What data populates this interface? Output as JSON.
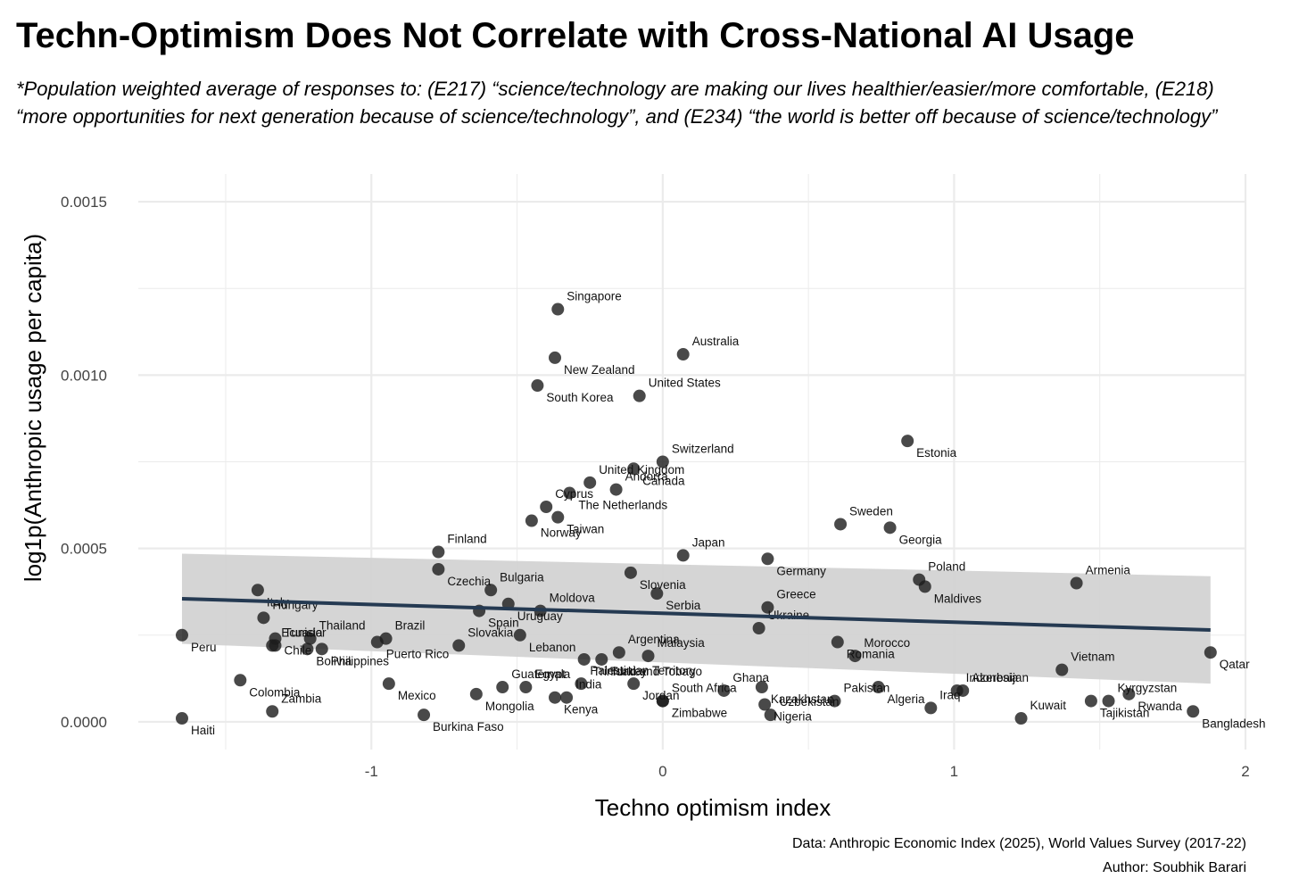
{
  "title": "Techn-Optimism Does Not Correlate with Cross-National AI Usage",
  "subtitle": "*Population weighted average of responses to: (E217) “science/technology are making our lives healthier/easier/more comfortable, (E218) “more opportunities for next generation because of science/technology”, and (E234) “the world is better off because of science/technology”",
  "caption_source": "Data: Anthropic Economic Index (2025), World Values Survey (2017-22)",
  "caption_author": "Author: Soubhik Barari",
  "colors": {
    "point": "#1c1c1c",
    "trend": "#253a52",
    "band": "#d3d3d3",
    "grid": "#ebebeb"
  },
  "chart_data": {
    "type": "scatter",
    "xlabel": "Techno optimism index",
    "ylabel": "log1p(Anthropic usage per capita)",
    "xlim": [
      -1.8,
      2.0
    ],
    "ylim": [
      -8e-05,
      0.00158
    ],
    "x_ticks": [
      -1,
      0,
      1,
      2
    ],
    "x_tick_labels": [
      "-1",
      "0",
      "1",
      "2"
    ],
    "y_ticks": [
      0.0,
      0.0005,
      0.001,
      0.0015
    ],
    "y_tick_labels": [
      "0.0000",
      "0.0005",
      "0.0010",
      "0.0015"
    ],
    "grid": true,
    "trend": {
      "x": [
        -1.65,
        1.88
      ],
      "y": [
        0.000355,
        0.000265
      ]
    },
    "band": {
      "x": [
        -1.65,
        1.88
      ],
      "upper": [
        0.000485,
        0.00042
      ],
      "lower": [
        0.000225,
        0.00011
      ]
    },
    "points": [
      {
        "label": "Singapore",
        "x": -0.36,
        "y": 0.00119
      },
      {
        "label": "New Zealand",
        "x": -0.37,
        "y": 0.00105
      },
      {
        "label": "Australia",
        "x": 0.07,
        "y": 0.00106
      },
      {
        "label": "South Korea",
        "x": -0.43,
        "y": 0.00097
      },
      {
        "label": "United States",
        "x": -0.08,
        "y": 0.00094
      },
      {
        "label": "Estonia",
        "x": 0.84,
        "y": 0.00081
      },
      {
        "label": "United Kingdom",
        "x": -0.25,
        "y": 0.00069
      },
      {
        "label": "Canada",
        "x": -0.1,
        "y": 0.00073
      },
      {
        "label": "Switzerland",
        "x": 0.0,
        "y": 0.00075
      },
      {
        "label": "The Netherlands",
        "x": -0.32,
        "y": 0.00066
      },
      {
        "label": "Andorra",
        "x": -0.16,
        "y": 0.00067
      },
      {
        "label": "Norway",
        "x": -0.45,
        "y": 0.00058
      },
      {
        "label": "Cyprus",
        "x": -0.4,
        "y": 0.00062
      },
      {
        "label": "Taiwan",
        "x": -0.36,
        "y": 0.00059
      },
      {
        "label": "Sweden",
        "x": 0.61,
        "y": 0.00057
      },
      {
        "label": "Georgia",
        "x": 0.78,
        "y": 0.00056
      },
      {
        "label": "Finland",
        "x": -0.77,
        "y": 0.00049
      },
      {
        "label": "Czechia",
        "x": -0.77,
        "y": 0.00044
      },
      {
        "label": "Japan",
        "x": 0.07,
        "y": 0.00048
      },
      {
        "label": "Germany",
        "x": 0.36,
        "y": 0.00047
      },
      {
        "label": "Bulgaria",
        "x": -0.59,
        "y": 0.00038
      },
      {
        "label": "Slovenia",
        "x": -0.11,
        "y": 0.00043
      },
      {
        "label": "Poland",
        "x": 0.88,
        "y": 0.00041
      },
      {
        "label": "Maldives",
        "x": 0.9,
        "y": 0.00039
      },
      {
        "label": "Armenia",
        "x": 1.42,
        "y": 0.0004
      },
      {
        "label": "Italy",
        "x": -1.39,
        "y": 0.00038
      },
      {
        "label": "Hungary",
        "x": -1.37,
        "y": 0.0003
      },
      {
        "label": "Uruguay",
        "x": -0.53,
        "y": 0.00034
      },
      {
        "label": "Moldova",
        "x": -0.42,
        "y": 0.00032
      },
      {
        "label": "Serbia",
        "x": -0.02,
        "y": 0.00037
      },
      {
        "label": "Greece",
        "x": 0.36,
        "y": 0.00033
      },
      {
        "label": "Chile",
        "x": -1.33,
        "y": 0.00024
      },
      {
        "label": "Brazil",
        "x": -0.95,
        "y": 0.00024
      },
      {
        "label": "Spain",
        "x": -0.63,
        "y": 0.00032
      },
      {
        "label": "Ukraine",
        "x": 0.33,
        "y": 0.00027
      },
      {
        "label": "Peru",
        "x": -1.65,
        "y": 0.00025
      },
      {
        "label": "Thailand",
        "x": -1.21,
        "y": 0.00024
      },
      {
        "label": "Lebanon",
        "x": -0.49,
        "y": 0.00025
      },
      {
        "label": "Argentina",
        "x": -0.15,
        "y": 0.0002
      },
      {
        "label": "Romania",
        "x": 0.6,
        "y": 0.00023
      },
      {
        "label": "Morocco",
        "x": 0.66,
        "y": 0.00019
      },
      {
        "label": "Qatar",
        "x": 1.88,
        "y": 0.0002
      },
      {
        "label": "Slovakia",
        "x": -0.7,
        "y": 0.00022
      },
      {
        "label": "Trinidad and Tobago",
        "x": -0.27,
        "y": 0.00018
      },
      {
        "label": "Malaysia",
        "x": -0.05,
        "y": 0.00019
      },
      {
        "label": "Puerto Rico",
        "x": -0.98,
        "y": 0.00023
      },
      {
        "label": "Ecuador",
        "x": -1.34,
        "y": 0.00022
      },
      {
        "label": "Colombia",
        "x": -1.45,
        "y": 0.00012
      },
      {
        "label": "Vietnam",
        "x": 1.37,
        "y": 0.00015
      },
      {
        "label": "Turkey",
        "x": -0.21,
        "y": 0.00018
      },
      {
        "label": "Palestinian Territory",
        "x": -0.28,
        "y": 0.00011
      },
      {
        "label": "Mexico",
        "x": -0.94,
        "y": 0.00011
      },
      {
        "label": "Ghana",
        "x": 0.21,
        "y": 9e-05
      },
      {
        "label": "Kazakhstan",
        "x": 0.34,
        "y": 0.0001
      },
      {
        "label": "Indonesia",
        "x": 1.01,
        "y": 9e-05
      },
      {
        "label": "Rwanda",
        "x": 1.6,
        "y": 8e-05
      },
      {
        "label": "Azerbaijan",
        "x": 1.03,
        "y": 9e-05
      },
      {
        "label": "Bolivia",
        "x": -1.22,
        "y": 0.00021
      },
      {
        "label": "Tunisia",
        "x": -1.33,
        "y": 0.00022
      },
      {
        "label": "Philippines",
        "x": -1.17,
        "y": 0.00021
      },
      {
        "label": "Egypt",
        "x": -0.47,
        "y": 0.0001
      },
      {
        "label": "Kenya",
        "x": -0.37,
        "y": 7e-05
      },
      {
        "label": "South Africa",
        "x": 0.0,
        "y": 6e-05
      },
      {
        "label": "Nigeria",
        "x": 0.35,
        "y": 5e-05
      },
      {
        "label": "Iraq",
        "x": 0.92,
        "y": 4e-05
      },
      {
        "label": "Jordan",
        "x": -0.1,
        "y": 0.00011
      },
      {
        "label": "Pakistan",
        "x": 0.59,
        "y": 6e-05
      },
      {
        "label": "Mongolia",
        "x": -0.64,
        "y": 8e-05
      },
      {
        "label": "Guatemala",
        "x": -0.55,
        "y": 0.0001
      },
      {
        "label": "Haiti",
        "x": -1.65,
        "y": 1e-05
      },
      {
        "label": "Zambia",
        "x": -1.34,
        "y": 3e-05
      },
      {
        "label": "Burkina Faso",
        "x": -0.82,
        "y": 2e-05
      },
      {
        "label": "India",
        "x": -0.33,
        "y": 7e-05
      },
      {
        "label": "Algeria",
        "x": 0.74,
        "y": 0.0001
      },
      {
        "label": "Uzbekistan",
        "x": 0.37,
        "y": 2e-05
      },
      {
        "label": "Zimbabwe",
        "x": 0.0,
        "y": 6e-05
      },
      {
        "label": "Kuwait",
        "x": 1.23,
        "y": 1e-05
      },
      {
        "label": "Tajikistan",
        "x": 1.47,
        "y": 6e-05
      },
      {
        "label": "Kyrgyzstan",
        "x": 1.53,
        "y": 6e-05
      },
      {
        "label": "Bangladesh",
        "x": 1.82,
        "y": 3e-05
      }
    ]
  }
}
